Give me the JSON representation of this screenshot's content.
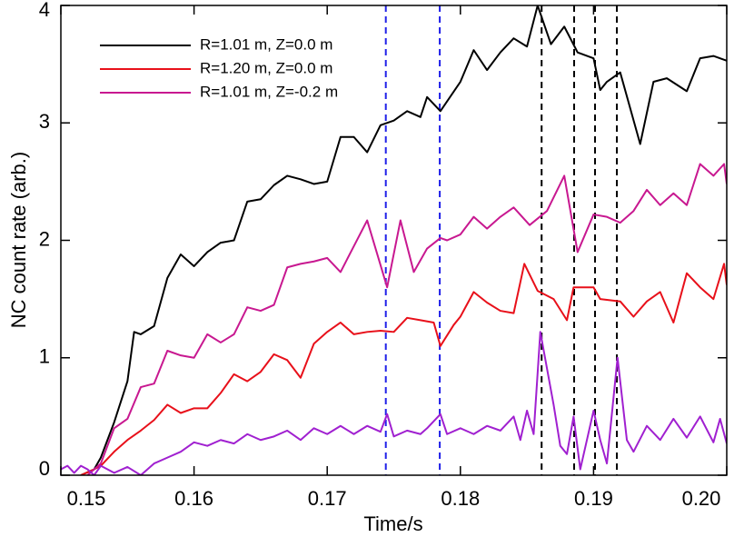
{
  "chart_data": {
    "type": "line",
    "xlabel": "Time/s",
    "ylabel": "NC count rate (arb.)",
    "xlim": [
      0.15,
      0.2
    ],
    "ylim": [
      0,
      4
    ],
    "xticks": [
      0.15,
      0.16,
      0.17,
      0.18,
      0.19,
      {
        "value": 0.2,
        "label": "0.20"
      }
    ],
    "yticks": [
      0,
      1,
      2,
      3,
      4
    ],
    "legend": "upper-left",
    "series": [
      {
        "name": "R=1.01 m, Z=0.0 m",
        "color": "#000000",
        "x": [
          0.1515,
          0.1525,
          0.153,
          0.154,
          0.155,
          0.1555,
          0.156,
          0.157,
          0.158,
          0.159,
          0.16,
          0.161,
          0.162,
          0.163,
          0.164,
          0.165,
          0.166,
          0.167,
          0.168,
          0.169,
          0.17,
          0.171,
          0.172,
          0.173,
          0.174,
          0.175,
          0.176,
          0.177,
          0.1775,
          0.1785,
          0.18,
          0.181,
          0.182,
          0.183,
          0.184,
          0.185,
          0.1858,
          0.1868,
          0.1878,
          0.1888,
          0.19,
          0.1905,
          0.191,
          0.192,
          0.1935,
          0.1945,
          0.1955,
          0.197,
          0.198,
          0.199,
          0.2
        ],
        "values": [
          0,
          0.05,
          0.15,
          0.45,
          0.8,
          1.22,
          1.2,
          1.27,
          1.68,
          1.88,
          1.78,
          1.9,
          1.98,
          2.0,
          2.33,
          2.35,
          2.47,
          2.55,
          2.52,
          2.48,
          2.5,
          2.88,
          2.88,
          2.75,
          2.98,
          3.02,
          3.1,
          3.05,
          3.22,
          3.1,
          3.35,
          3.62,
          3.45,
          3.6,
          3.72,
          3.65,
          4.0,
          3.67,
          3.82,
          3.6,
          3.55,
          3.28,
          3.35,
          3.43,
          2.82,
          3.35,
          3.38,
          3.27,
          3.55,
          3.57,
          3.53
        ]
      },
      {
        "name": "R=1.20 m, Z=0.0 m",
        "color": "#e8101a",
        "x": [
          0.1515,
          0.1525,
          0.153,
          0.154,
          0.155,
          0.156,
          0.157,
          0.158,
          0.159,
          0.16,
          0.161,
          0.162,
          0.163,
          0.164,
          0.165,
          0.166,
          0.167,
          0.168,
          0.169,
          0.17,
          0.171,
          0.172,
          0.173,
          0.174,
          0.175,
          0.176,
          0.177,
          0.178,
          0.1785,
          0.1795,
          0.18,
          0.181,
          0.182,
          0.183,
          0.184,
          0.1848,
          0.1858,
          0.187,
          0.188,
          0.1885,
          0.19,
          0.1905,
          0.192,
          0.193,
          0.194,
          0.195,
          0.196,
          0.197,
          0.198,
          0.199,
          0.1998,
          0.2
        ],
        "values": [
          0,
          0.05,
          0.08,
          0.2,
          0.3,
          0.38,
          0.47,
          0.6,
          0.53,
          0.57,
          0.57,
          0.7,
          0.86,
          0.8,
          0.88,
          1.03,
          0.98,
          0.83,
          1.12,
          1.22,
          1.3,
          1.2,
          1.22,
          1.23,
          1.22,
          1.34,
          1.32,
          1.3,
          1.1,
          1.28,
          1.35,
          1.56,
          1.47,
          1.4,
          1.38,
          1.8,
          1.57,
          1.5,
          1.32,
          1.6,
          1.6,
          1.5,
          1.48,
          1.35,
          1.48,
          1.56,
          1.3,
          1.72,
          1.6,
          1.5,
          1.8,
          1.62
        ]
      },
      {
        "name": "R=1.01 m, Z=-0.2 m",
        "color": "#c81890",
        "x": [
          0.152,
          0.153,
          0.154,
          0.155,
          0.156,
          0.157,
          0.158,
          0.159,
          0.16,
          0.161,
          0.162,
          0.163,
          0.164,
          0.165,
          0.166,
          0.167,
          0.168,
          0.169,
          0.17,
          0.171,
          0.172,
          0.173,
          0.1745,
          0.1755,
          0.1765,
          0.1775,
          0.1785,
          0.179,
          0.18,
          0.181,
          0.182,
          0.183,
          0.184,
          0.1852,
          0.1865,
          0.1878,
          0.1888,
          0.19,
          0.191,
          0.192,
          0.193,
          0.194,
          0.195,
          0.196,
          0.197,
          0.198,
          0.199,
          0.1998,
          0.2
        ],
        "values": [
          0,
          0.1,
          0.4,
          0.48,
          0.75,
          0.78,
          1.06,
          1.02,
          1.0,
          1.2,
          1.13,
          1.2,
          1.43,
          1.4,
          1.45,
          1.77,
          1.8,
          1.82,
          1.85,
          1.73,
          1.95,
          2.17,
          1.6,
          2.17,
          1.73,
          1.93,
          2.02,
          2.0,
          2.05,
          2.2,
          2.1,
          2.2,
          2.28,
          2.13,
          2.25,
          2.55,
          1.9,
          2.22,
          2.2,
          2.15,
          2.25,
          2.43,
          2.3,
          2.4,
          2.3,
          2.65,
          2.55,
          2.65,
          2.48
        ]
      },
      {
        "name": null,
        "color": "#a020d0",
        "x": [
          0.15,
          0.1505,
          0.151,
          0.1515,
          0.152,
          0.1525,
          0.153,
          0.154,
          0.155,
          0.156,
          0.157,
          0.158,
          0.159,
          0.16,
          0.161,
          0.162,
          0.163,
          0.164,
          0.165,
          0.166,
          0.167,
          0.168,
          0.169,
          0.17,
          0.171,
          0.172,
          0.173,
          0.174,
          0.1745,
          0.175,
          0.176,
          0.177,
          0.1775,
          0.1785,
          0.179,
          0.18,
          0.181,
          0.182,
          0.183,
          0.184,
          0.1845,
          0.185,
          0.1855,
          0.186,
          0.187,
          0.1875,
          0.188,
          0.1885,
          0.189,
          0.19,
          0.1905,
          0.191,
          0.1918,
          0.1925,
          0.193,
          0.194,
          0.195,
          0.196,
          0.197,
          0.198,
          0.199,
          0.1995,
          0.2
        ],
        "values": [
          0.05,
          0.08,
          0.02,
          0.08,
          0.05,
          0,
          0.08,
          0.02,
          0.07,
          0,
          0.1,
          0.15,
          0.2,
          0.28,
          0.25,
          0.3,
          0.27,
          0.35,
          0.3,
          0.33,
          0.38,
          0.3,
          0.4,
          0.35,
          0.42,
          0.35,
          0.42,
          0.37,
          0.52,
          0.33,
          0.38,
          0.35,
          0.4,
          0.52,
          0.35,
          0.4,
          0.35,
          0.42,
          0.38,
          0.5,
          0.3,
          0.55,
          0.35,
          1.22,
          0.6,
          0.25,
          0.18,
          0.5,
          0.05,
          0.55,
          0.3,
          0.1,
          1.0,
          0.3,
          0.2,
          0.42,
          0.3,
          0.48,
          0.32,
          0.5,
          0.28,
          0.48,
          0.27
        ]
      }
    ],
    "vlines": [
      {
        "x": 0.1744,
        "color": "#2020e8"
      },
      {
        "x": 0.17845,
        "color": "#2020e8"
      },
      {
        "x": 0.1861,
        "color": "#000000"
      },
      {
        "x": 0.18854,
        "color": "#000000"
      },
      {
        "x": 0.19011,
        "color": "#000000"
      },
      {
        "x": 0.19175,
        "color": "#000000"
      }
    ]
  }
}
